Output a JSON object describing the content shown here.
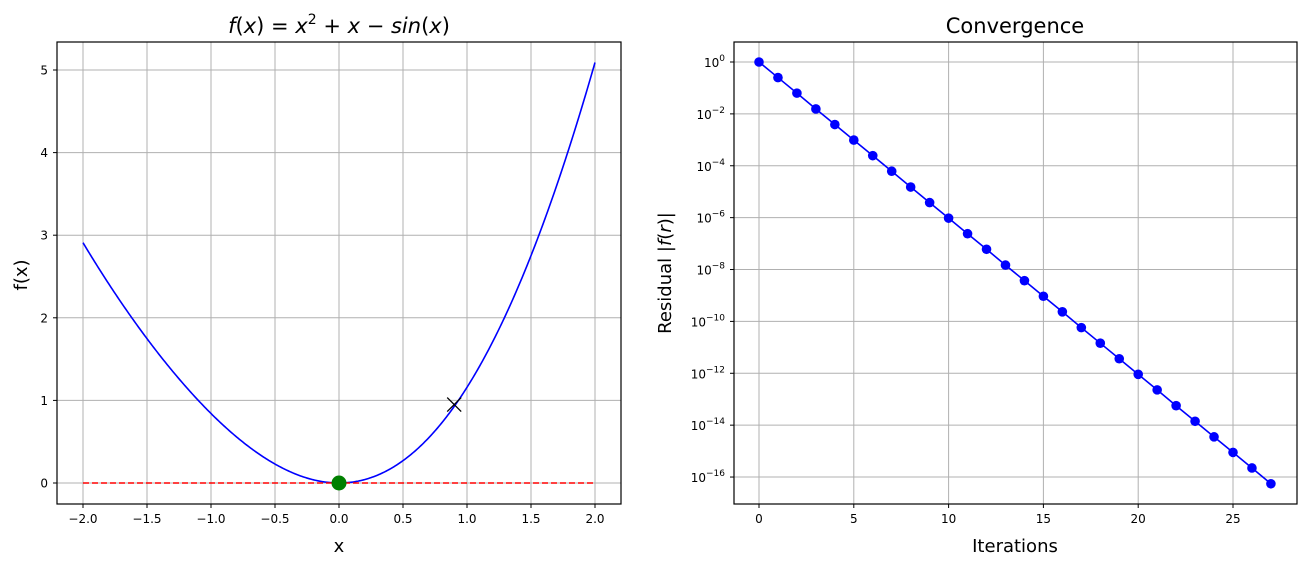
{
  "chart_data": [
    {
      "type": "line",
      "title": "f(x) = x^2 + x - sin(x)",
      "title_parts": {
        "f": "f",
        "lp": "(",
        "x1": "x",
        "rp": ")",
        "eq": " = ",
        "x2": "x",
        "sup": "2",
        "plus": " + ",
        "x3": "x",
        "minus": " − ",
        "sin": "sin",
        "lp2": "(",
        "x4": "x",
        "rp2": ")"
      },
      "xlabel": "x",
      "ylabel": "f(x)",
      "xlim": [
        -2.2,
        2.2
      ],
      "ylim": [
        -0.25,
        5.35
      ],
      "grid": true,
      "xticks": [
        -2.0,
        -1.5,
        -1.0,
        -0.5,
        0.0,
        0.5,
        1.0,
        1.5,
        2.0
      ],
      "xtick_labels": [
        "−2.0",
        "−1.5",
        "−1.0",
        "−0.5",
        "0.0",
        "0.5",
        "1.0",
        "1.5",
        "2.0"
      ],
      "yticks": [
        0,
        1,
        2,
        3,
        4,
        5
      ],
      "ytick_labels": [
        "0",
        "1",
        "2",
        "3",
        "4",
        "5"
      ],
      "series": [
        {
          "name": "f(x)",
          "color": "#0000ff",
          "style": "solid",
          "function": "x^2 + x - sin(x)",
          "x_range": [
            -2.0,
            2.0
          ]
        },
        {
          "name": "zero line",
          "color": "#ff0000",
          "style": "dashed",
          "x": [
            -2.0,
            2.0
          ],
          "y": [
            0,
            0
          ]
        },
        {
          "name": "root",
          "color": "#008000",
          "marker": "circle",
          "x": [
            0.0
          ],
          "y": [
            0.0
          ]
        },
        {
          "name": "initial guess",
          "color": "#000000",
          "marker": "x",
          "x": [
            0.9
          ],
          "y": [
            0.95
          ]
        }
      ]
    },
    {
      "type": "line",
      "title": "Convergence",
      "xlabel": "Iterations",
      "ylabel": "Residual |f(r)|",
      "yscale": "log",
      "xlim": [
        -1.35,
        28.35
      ],
      "ylim": [
        1e-17,
        5
      ],
      "grid": true,
      "xticks": [
        0,
        5,
        10,
        15,
        20,
        25
      ],
      "xtick_labels": [
        "0",
        "5",
        "10",
        "15",
        "20",
        "25"
      ],
      "yticks_exp": [
        0,
        -2,
        -4,
        -6,
        -8,
        -10,
        -12,
        -14,
        -16
      ],
      "series": [
        {
          "name": "residual",
          "color": "#0000ff",
          "marker": "circle",
          "x": [
            0,
            1,
            2,
            3,
            4,
            5,
            6,
            7,
            8,
            9,
            10,
            11,
            12,
            13,
            14,
            15,
            16,
            17,
            18,
            19,
            20,
            21,
            22,
            23,
            24,
            25,
            26,
            27
          ],
          "log10_y": [
            0,
            -0.6,
            -1.2,
            -1.81,
            -2.41,
            -3.01,
            -3.61,
            -4.21,
            -4.82,
            -5.42,
            -6.02,
            -6.62,
            -7.22,
            -7.83,
            -8.43,
            -9.03,
            -9.63,
            -10.24,
            -10.84,
            -11.44,
            -12.04,
            -12.64,
            -13.25,
            -13.85,
            -14.45,
            -15.05,
            -15.65,
            -16.26
          ]
        }
      ]
    }
  ]
}
